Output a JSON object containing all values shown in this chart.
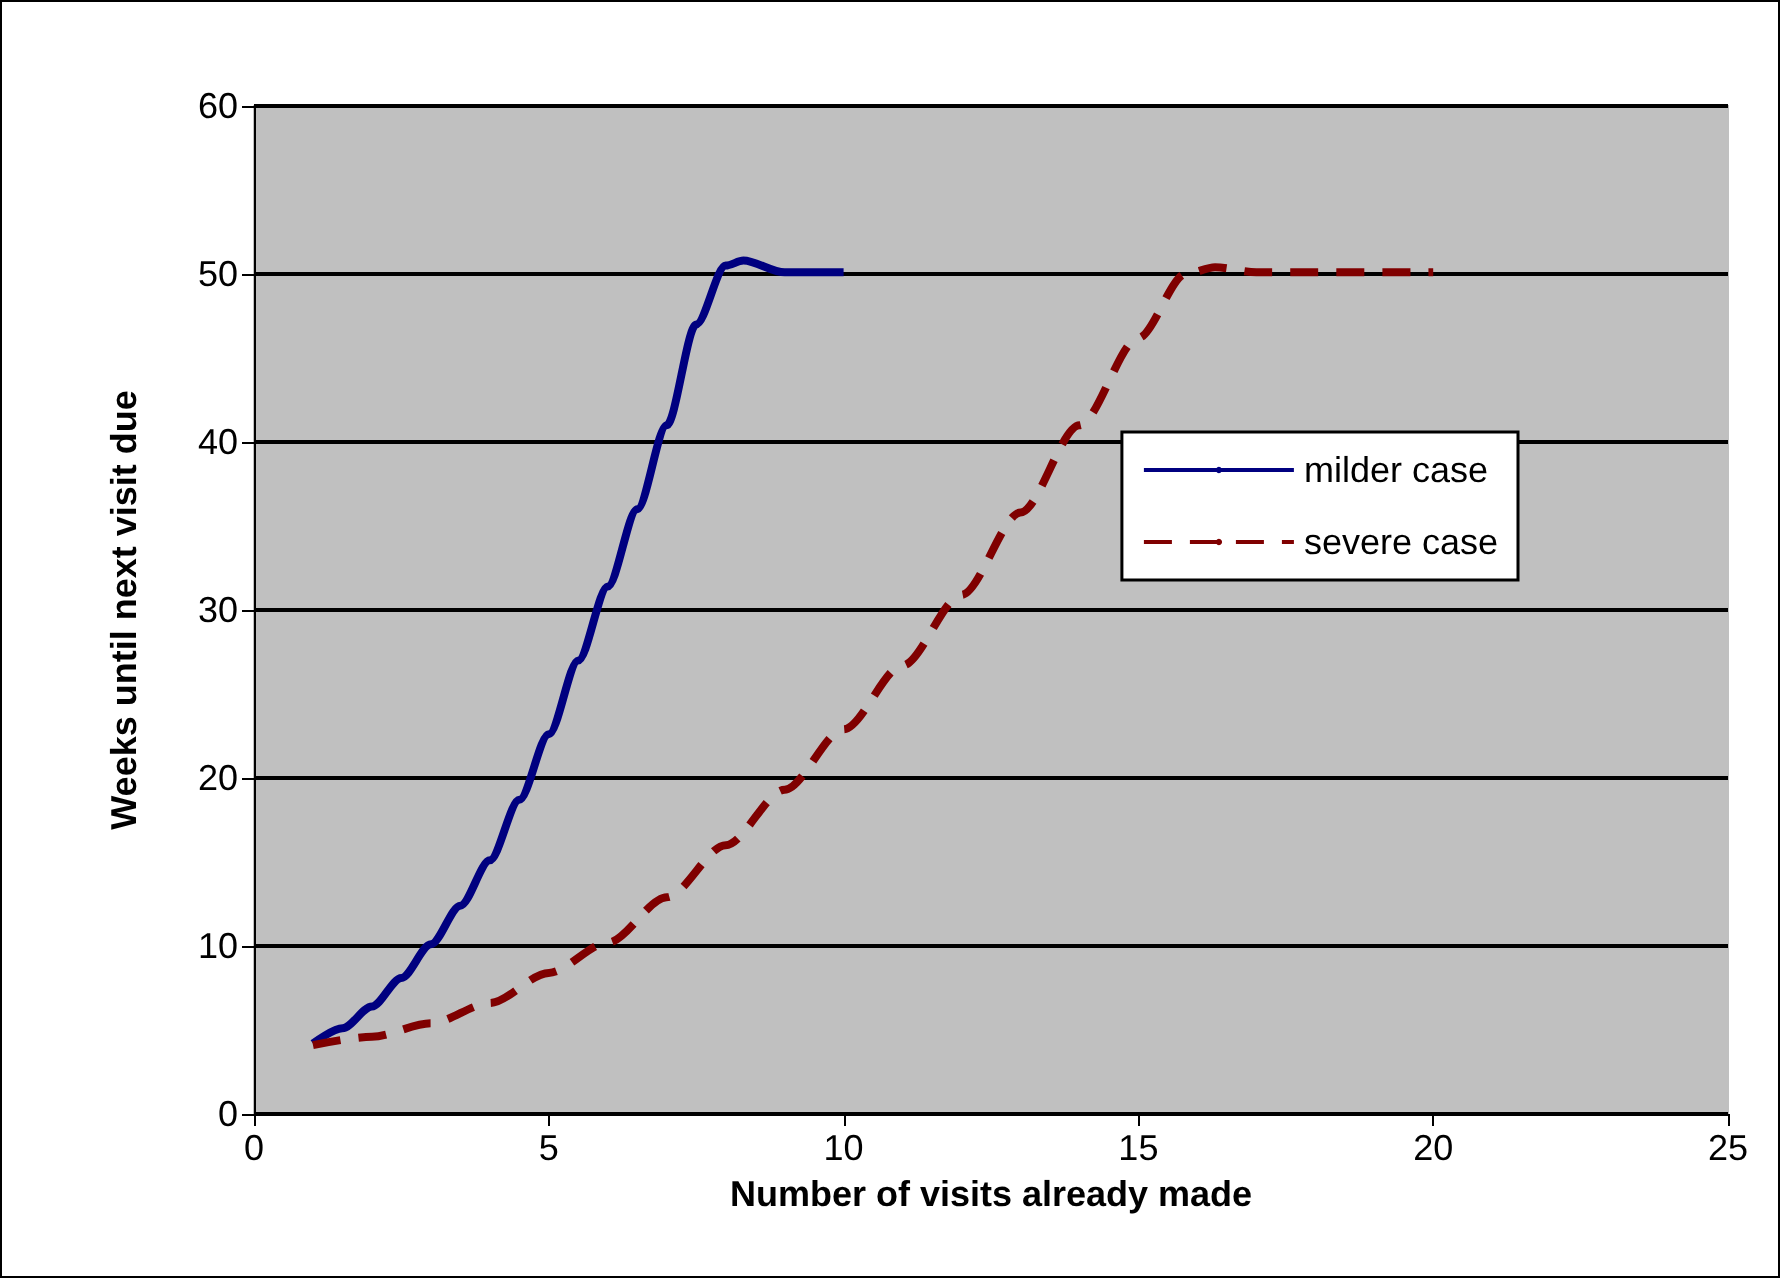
{
  "chart_data": {
    "type": "line",
    "xlabel": "Number of visits already made",
    "ylabel": "Weeks until next visit due",
    "xlim": [
      0,
      25
    ],
    "xticks": [
      0,
      5,
      10,
      15,
      20,
      25
    ],
    "ylim": [
      0,
      60
    ],
    "yticks": [
      0,
      10,
      20,
      30,
      40,
      50,
      60
    ],
    "grid": "y",
    "legend": "right",
    "marker": "none",
    "series": [
      {
        "name": "milder case",
        "color": "#000080",
        "line_style": "solid",
        "x": [
          1,
          1.5,
          2,
          2.5,
          3,
          3.5,
          4,
          4.5,
          5,
          5.5,
          6,
          6.5,
          7,
          7.5,
          8,
          8.3,
          9,
          10
        ],
        "values": [
          4.2,
          5.1,
          6.4,
          8.1,
          10.1,
          12.4,
          15.1,
          18.7,
          22.6,
          27,
          31.4,
          36,
          41,
          47,
          50.5,
          50.8,
          50.1,
          50.1
        ]
      },
      {
        "name": "severe case",
        "color": "#800000",
        "line_style": "dashed",
        "x": [
          1,
          2,
          3,
          4,
          5,
          6,
          7,
          8,
          9,
          10,
          11,
          12,
          13,
          14,
          15,
          15.8,
          16.3,
          17,
          20
        ],
        "values": [
          4.1,
          4.6,
          5.4,
          6.6,
          8.4,
          10.2,
          12.9,
          16,
          19.3,
          22.9,
          26.7,
          30.9,
          35.8,
          41,
          46.2,
          50,
          50.4,
          50.1,
          50.1
        ]
      }
    ]
  }
}
